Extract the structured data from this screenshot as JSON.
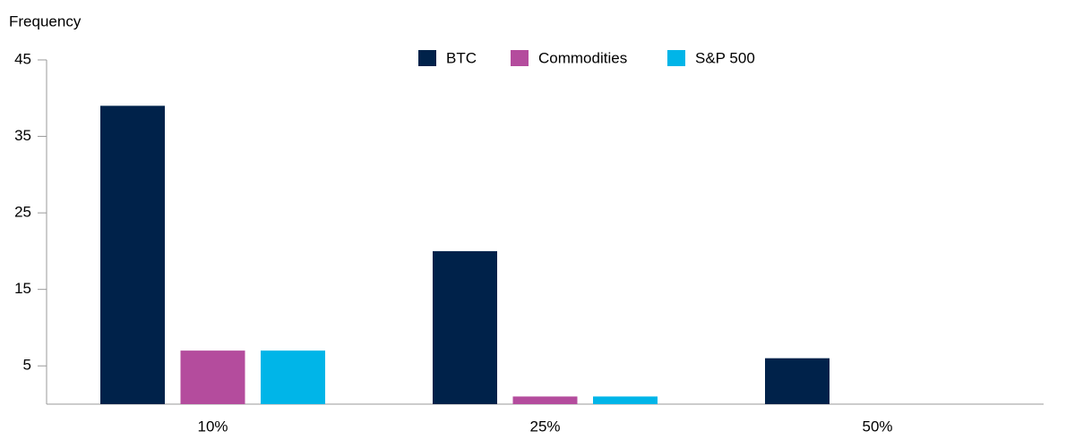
{
  "chart_data": {
    "type": "bar",
    "y_label": "Frequency",
    "categories": [
      "10%",
      "25%",
      "50%"
    ],
    "series": [
      {
        "name": "BTC",
        "color": "#00224a",
        "values": [
          39,
          20,
          6
        ]
      },
      {
        "name": "Commodities",
        "color": "#b44c9d",
        "values": [
          7,
          1,
          0
        ]
      },
      {
        "name": "S&P 500",
        "color": "#00b5e8",
        "values": [
          7,
          1,
          0
        ]
      }
    ],
    "ylim": [
      0,
      45
    ],
    "yticks": [
      5,
      15,
      25,
      35,
      45
    ],
    "grid": false,
    "legend": "top"
  }
}
